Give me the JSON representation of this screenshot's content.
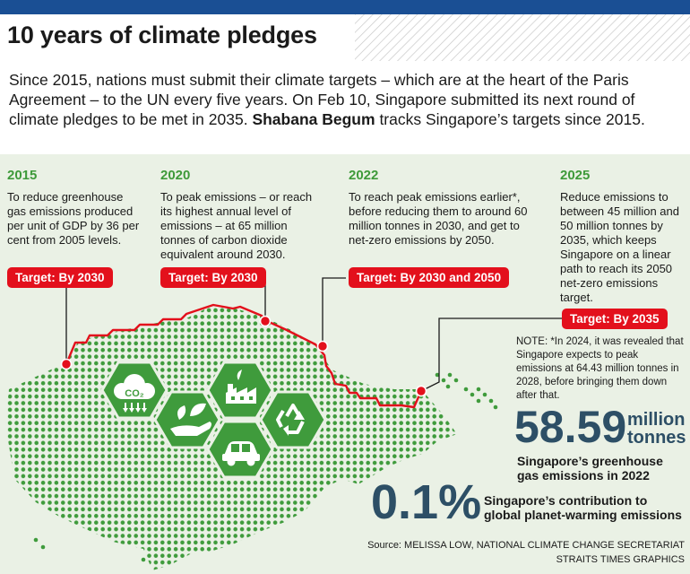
{
  "header": {
    "title": "10 years of climate pledges",
    "intro_text": "Since 2015, nations must submit their climate targets – which are at the heart of the Paris Agreement – to the UN every five years. On Feb 10, Singapore submitted its next round of climate pledges to be met in 2035.",
    "intro_author": "Shabana Begum",
    "intro_tail": "tracks Singapore’s targets since 2015."
  },
  "milestones": [
    {
      "year": "2015",
      "description": "To reduce greenhouse gas emissions produced per unit of GDP by 36 per cent from 2005 levels.",
      "target": "Target: By 2030"
    },
    {
      "year": "2020",
      "description": "To peak emissions – or reach its highest annual level of emissions – at 65 million tonnes of carbon dioxide equivalent around 2030.",
      "target": "Target: By 2030"
    },
    {
      "year": "2022",
      "description": "To reach peak emissions earlier*, before reducing them to around 60 million tonnes in 2030, and get to net-zero emissions by 2050.",
      "target": "Target: By 2030 and 2050"
    },
    {
      "year": "2025",
      "description": "Reduce emissions to between 45 million and 50 million tonnes by 2035, which keeps Singapore on a linear path to reach its 2050 net-zero emissions target.",
      "target": "Target: By 2035"
    }
  ],
  "note": "NOTE: *In 2024, it was revealed that Singapore expects to peak emissions at 64.43 million tonnes in 2028, before bringing them down after that.",
  "stats": {
    "emissions_value": "58.59",
    "emissions_unit_1": "million",
    "emissions_unit_2": "tonnes",
    "emissions_desc_1": "Singapore’s greenhouse",
    "emissions_desc_2": "gas emissions in 2022",
    "share_value": "0.1%",
    "share_desc_1": "Singapore’s contribution to",
    "share_desc_2": "global planet-warming emissions"
  },
  "source": {
    "line1": "Source: MELISSA LOW, NATIONAL CLIMATE CHANGE SECRETARIAT",
    "line2": "STRAITS TIMES GRAPHICS"
  },
  "icons": [
    "co2-cloud-icon",
    "leaf-hand-icon",
    "factory-icon",
    "car-icon",
    "recycle-icon"
  ],
  "colors": {
    "header_bar": "#1a4f94",
    "year_green": "#3e9a3a",
    "target_red": "#e3101c",
    "map_green": "#3f9b3c",
    "stat_blue": "#2d4f66",
    "panel_bg": "#eaf1e5"
  }
}
